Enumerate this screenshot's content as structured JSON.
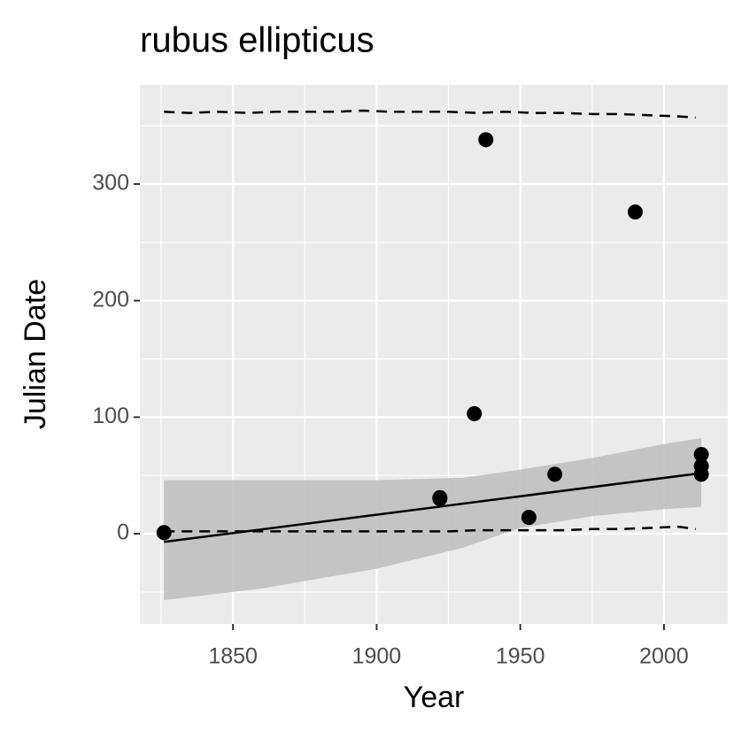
{
  "chart_data": {
    "type": "scatter",
    "title": "rubus ellipticus",
    "x_label": "Year",
    "y_label": "Julian Date",
    "x": [
      1826,
      1922,
      1922,
      1934,
      1938,
      1953,
      1962,
      1990,
      2013,
      2013,
      2013
    ],
    "values": [
      1,
      31,
      30,
      103,
      338,
      14,
      51,
      276,
      68,
      58,
      51
    ],
    "color": "#000000",
    "fit": {
      "x": [
        1826,
        2013
      ],
      "values": [
        -7,
        52
      ],
      "color": "#000000"
    },
    "ribbon": {
      "x": [
        1826,
        1860,
        1900,
        1930,
        1950,
        1975,
        2000,
        2013
      ],
      "upper": [
        46,
        46,
        46,
        48,
        55,
        65,
        77,
        82
      ],
      "lower": [
        -57,
        -47,
        -30,
        -12,
        5,
        15,
        21,
        23
      ],
      "color": "#bdbdbd"
    },
    "quantile_lines": [
      {
        "x": [
          1826,
          1835,
          1845,
          1855,
          1865,
          1875,
          1885,
          1895,
          1905,
          1915,
          1925,
          1935,
          1945,
          1955,
          1965,
          1975,
          1985,
          1995,
          2005,
          2011
        ],
        "values": [
          362,
          361,
          362,
          361,
          362,
          362,
          362,
          363,
          362,
          362,
          362,
          361,
          362,
          361,
          361,
          360,
          360,
          359,
          358,
          357
        ]
      },
      {
        "x": [
          1826,
          1835,
          1845,
          1855,
          1865,
          1875,
          1885,
          1895,
          1905,
          1915,
          1925,
          1935,
          1945,
          1955,
          1965,
          1975,
          1985,
          1995,
          2005,
          2011
        ],
        "values": [
          2,
          2,
          2,
          2,
          2,
          2,
          2,
          2,
          2,
          2,
          2,
          3,
          3,
          3,
          3,
          4,
          4,
          5,
          6,
          4
        ]
      }
    ],
    "xlim": [
      1817.6,
      2022.2
    ],
    "ylim": [
      -77.4,
      385
    ],
    "xticks": [
      1850,
      1900,
      1950,
      2000
    ],
    "yticks": [
      0,
      100,
      200,
      300
    ],
    "x_minor_ticks": [
      1825,
      1875,
      1925,
      1975
    ],
    "y_minor_ticks": [
      -50,
      50,
      150,
      250,
      350
    ],
    "grid": true
  }
}
